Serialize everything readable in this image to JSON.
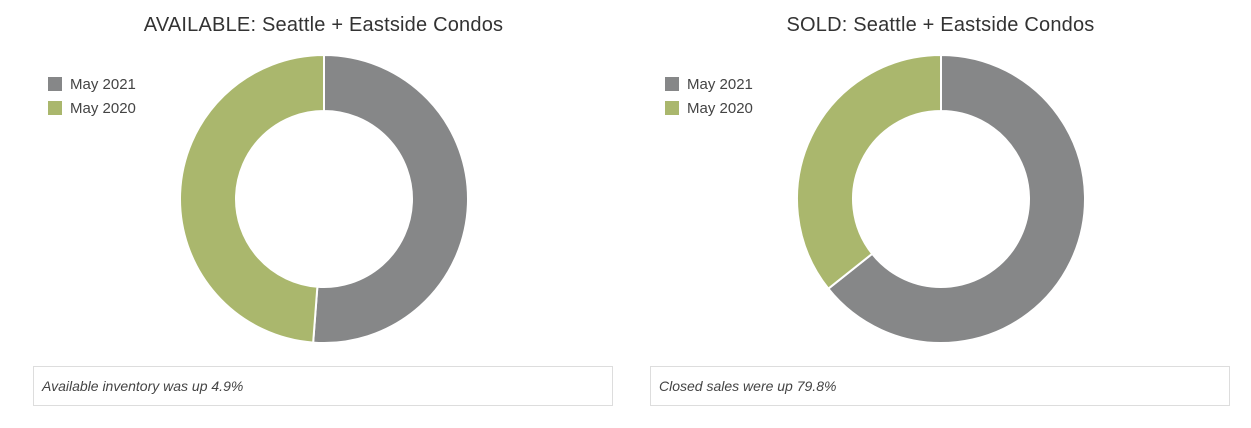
{
  "chart_data": [
    {
      "type": "pie",
      "title": "AVAILABLE: Seattle + Eastside Condos",
      "categories": [
        "May 2021",
        "May 2020"
      ],
      "values": [
        51.2,
        48.8
      ],
      "colors": [
        "#868788",
        "#aab76d"
      ],
      "legend": "top-left",
      "donut": true,
      "note": "Available inventory was up 4.9%"
    },
    {
      "type": "pie",
      "title": "SOLD: Seattle + Eastside Condos",
      "categories": [
        "May 2021",
        "May 2020"
      ],
      "values": [
        64.3,
        35.7
      ],
      "colors": [
        "#868788",
        "#aab76d"
      ],
      "legend": "top-left",
      "donut": true,
      "note": "Closed sales were up 79.8%"
    }
  ]
}
